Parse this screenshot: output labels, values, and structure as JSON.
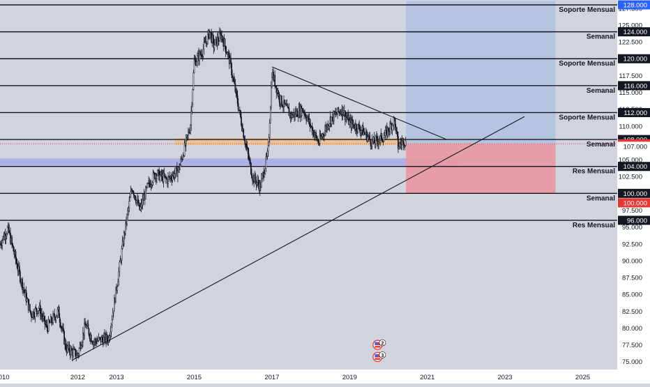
{
  "chart_data": {
    "type": "candlestick",
    "title": "",
    "xlabel": "",
    "ylabel": "",
    "ylim": [
      74.5,
      128.6
    ],
    "x_range_years": [
      2010.0,
      2025.8
    ],
    "y_ticks": [
      "75.000",
      "77.500",
      "80.000",
      "82.500",
      "85.000",
      "87.500",
      "90.000",
      "92.500",
      "95.000",
      "97.500",
      "100.000",
      "102.500",
      "105.000",
      "107.500",
      "110.000",
      "112.500",
      "115.000",
      "117.500",
      "120.000",
      "122.500",
      "125.000",
      "127.500"
    ],
    "x_ticks": [
      {
        "label": "2010",
        "year": 2010.0
      },
      {
        "label": "2012",
        "year": 2012.0
      },
      {
        "label": "2013",
        "year": 2013.0
      },
      {
        "label": "2015",
        "year": 2015.0
      },
      {
        "label": "2017",
        "year": 2017.0
      },
      {
        "label": "2019",
        "year": 2019.0
      },
      {
        "label": "2021",
        "year": 2021.0
      },
      {
        "label": "2023",
        "year": 2023.0
      },
      {
        "label": "2025",
        "year": 2025.0
      }
    ],
    "price_path": [
      [
        2010.0,
        92.5
      ],
      [
        2010.2,
        94.8
      ],
      [
        2010.5,
        88.0
      ],
      [
        2010.8,
        82.0
      ],
      [
        2011.0,
        83.0
      ],
      [
        2011.2,
        80.0
      ],
      [
        2011.5,
        82.5
      ],
      [
        2011.7,
        77.0
      ],
      [
        2012.0,
        76.0
      ],
      [
        2012.2,
        80.5
      ],
      [
        2012.4,
        78.0
      ],
      [
        2012.8,
        78.5
      ],
      [
        2013.0,
        86.0
      ],
      [
        2013.2,
        94.0
      ],
      [
        2013.4,
        101.0
      ],
      [
        2013.6,
        97.5
      ],
      [
        2013.8,
        101.0
      ],
      [
        2014.0,
        103.0
      ],
      [
        2014.3,
        102.0
      ],
      [
        2014.6,
        103.5
      ],
      [
        2014.9,
        110.0
      ],
      [
        2015.0,
        119.5
      ],
      [
        2015.2,
        121.0
      ],
      [
        2015.4,
        124.0
      ],
      [
        2015.5,
        122.0
      ],
      [
        2015.7,
        123.5
      ],
      [
        2015.9,
        120.0
      ],
      [
        2016.1,
        114.0
      ],
      [
        2016.3,
        108.0
      ],
      [
        2016.5,
        102.5
      ],
      [
        2016.7,
        101.0
      ],
      [
        2016.9,
        106.0
      ],
      [
        2017.0,
        118.0
      ],
      [
        2017.2,
        114.0
      ],
      [
        2017.5,
        111.5
      ],
      [
        2017.8,
        112.5
      ],
      [
        2018.0,
        110.0
      ],
      [
        2018.2,
        107.5
      ],
      [
        2018.5,
        111.0
      ],
      [
        2018.8,
        112.5
      ],
      [
        2019.0,
        110.5
      ],
      [
        2019.3,
        109.5
      ],
      [
        2019.6,
        107.5
      ],
      [
        2019.9,
        108.5
      ],
      [
        2020.0,
        109.5
      ],
      [
        2020.15,
        111.0
      ],
      [
        2020.25,
        107.0
      ],
      [
        2020.4,
        108.0
      ],
      [
        2020.45,
        107.36
      ]
    ],
    "horizontal_levels": [
      {
        "price": 128.0,
        "label": "Soporte Mensual"
      },
      {
        "price": 124.0,
        "label": "Semanal"
      },
      {
        "price": 120.0,
        "label": "Soporte Mensual"
      },
      {
        "price": 116.0,
        "label": "Semanal"
      },
      {
        "price": 112.0,
        "label": "Soporte Mensual"
      },
      {
        "price": 108.0,
        "label": "Semanal"
      },
      {
        "price": 104.0,
        "label": "Res Mensual"
      },
      {
        "price": 100.0,
        "label": "Semanal"
      },
      {
        "price": 96.0,
        "label": "Res Mensual"
      }
    ],
    "trendlines": [
      {
        "name": "descending",
        "from": [
          2017.0,
          118.8
        ],
        "to": [
          2021.5,
          108.0
        ]
      },
      {
        "name": "ascending",
        "from": [
          2011.85,
          75.2
        ],
        "to": [
          2023.5,
          111.4
        ]
      }
    ],
    "zones": [
      {
        "name": "orange-zone",
        "color": "#f0c08c",
        "y": [
          107.2,
          108.2
        ],
        "x": [
          2014.5,
          2022.5
        ]
      },
      {
        "name": "blue-zone",
        "color": "#aab0e8",
        "y": [
          104.1,
          105.2
        ],
        "x": [
          2010.0,
          2021.8
        ]
      },
      {
        "name": "profit-zone",
        "color": "#b3c4e0",
        "y": [
          107.36,
          128.6
        ],
        "x": [
          2020.45,
          2024.3
        ]
      },
      {
        "name": "loss-zone",
        "color": "#e89aa3",
        "y": [
          100.0,
          107.36
        ],
        "x": [
          2020.45,
          2024.3
        ]
      }
    ],
    "price_axis_tags": [
      {
        "value": "128.000",
        "bg": "#2962ff",
        "fg": "#ffffff",
        "price": 128.0
      },
      {
        "value": "124.000",
        "bg": "#131722",
        "fg": "#ffffff",
        "price": 124.0
      },
      {
        "value": "120.000",
        "bg": "#131722",
        "fg": "#ffffff",
        "price": 120.0
      },
      {
        "value": "116.000",
        "bg": "#131722",
        "fg": "#ffffff",
        "price": 116.0
      },
      {
        "value": "112.000",
        "bg": "#131722",
        "fg": "#ffffff",
        "price": 112.0
      },
      {
        "value": "108.000",
        "bg": "#131722",
        "fg": "#ffffff",
        "price": 108.0
      },
      {
        "value": "107.358",
        "bg": "#e53935",
        "fg": "#ffffff",
        "price": 107.358
      },
      {
        "value": "107.000",
        "bg": "#ffffff",
        "fg": "#131722",
        "price": 107.0
      },
      {
        "value": "104.000",
        "bg": "#131722",
        "fg": "#ffffff",
        "price": 104.0
      },
      {
        "value": "100.000",
        "bg": "#131722",
        "fg": "#ffffff",
        "price": 100.0
      },
      {
        "value": "100.000",
        "bg": "#e53935",
        "fg": "#ffffff",
        "price": 98.6
      },
      {
        "value": "96.000",
        "bg": "#131722",
        "fg": "#ffffff",
        "price": 96.0
      }
    ],
    "event_markers": [
      {
        "icon": "us-flag-icon",
        "count": "2",
        "year": 2019.72,
        "price": 77.5
      },
      {
        "icon": "us-flag-icon",
        "count": "3",
        "year": 2019.72,
        "price": 75.7
      }
    ]
  },
  "colors": {
    "background": "#d1d4dc",
    "candle_up": "#26a69a",
    "candle_down": "#ef5350",
    "candle_plot": "#131722",
    "level_line": "#131722",
    "trendline": "#131722"
  }
}
